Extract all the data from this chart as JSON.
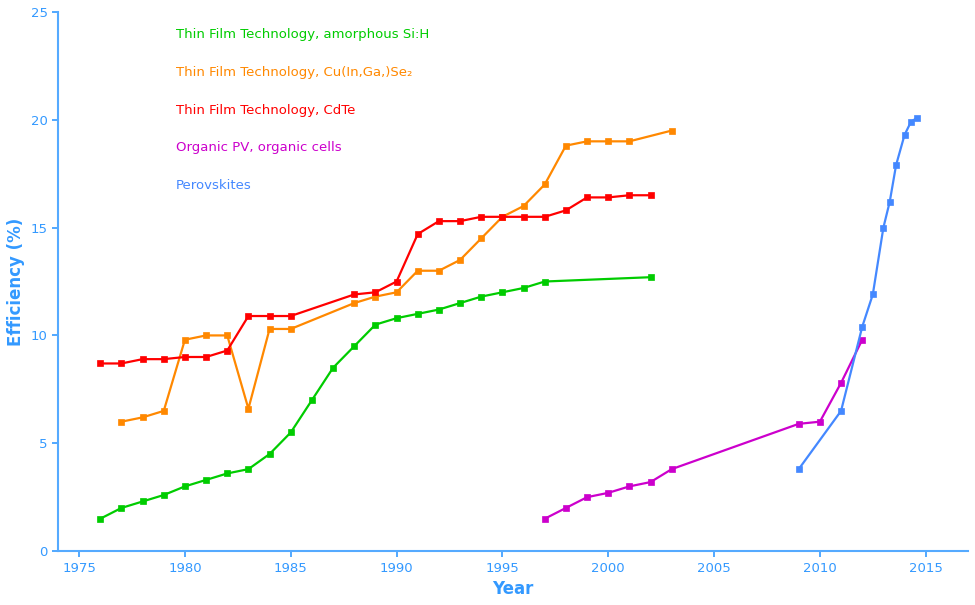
{
  "series": [
    {
      "label": "Thin Film Technology, amorphous Si:H",
      "color": "#00cc00",
      "x": [
        1976,
        1977,
        1978,
        1979,
        1980,
        1981,
        1982,
        1983,
        1984,
        1985,
        1986,
        1987,
        1988,
        1989,
        1990,
        1991,
        1992,
        1993,
        1994,
        1995,
        1996,
        1997,
        2002
      ],
      "y": [
        1.5,
        2.0,
        2.3,
        2.6,
        3.0,
        3.3,
        3.6,
        3.8,
        4.5,
        5.5,
        7.0,
        8.5,
        9.5,
        10.5,
        10.8,
        11.0,
        11.2,
        11.5,
        11.8,
        12.0,
        12.2,
        12.5,
        12.7
      ]
    },
    {
      "label": "Thin Film Technology, Cu(In,Ga,)Se₂",
      "color": "#ff8800",
      "x": [
        1977,
        1978,
        1979,
        1980,
        1981,
        1982,
        1983,
        1984,
        1985,
        1988,
        1989,
        1990,
        1991,
        1992,
        1993,
        1994,
        1995,
        1996,
        1997,
        1998,
        1999,
        2000,
        2001,
        2003
      ],
      "y": [
        6.0,
        6.2,
        6.5,
        9.8,
        10.0,
        10.0,
        6.6,
        10.3,
        10.3,
        11.5,
        11.8,
        12.0,
        13.0,
        13.0,
        13.5,
        14.5,
        15.5,
        16.0,
        17.0,
        18.8,
        19.0,
        19.0,
        19.0,
        19.5
      ]
    },
    {
      "label": "Thin Film Technology, CdTe",
      "color": "#ff0000",
      "x": [
        1976,
        1977,
        1978,
        1979,
        1980,
        1981,
        1982,
        1983,
        1984,
        1985,
        1988,
        1989,
        1990,
        1991,
        1992,
        1993,
        1994,
        1995,
        1996,
        1997,
        1998,
        1999,
        2000,
        2001,
        2002
      ],
      "y": [
        8.7,
        8.7,
        8.9,
        8.9,
        9.0,
        9.0,
        9.3,
        10.9,
        10.9,
        10.9,
        11.9,
        12.0,
        12.5,
        14.7,
        15.3,
        15.3,
        15.5,
        15.5,
        15.5,
        15.5,
        15.8,
        16.4,
        16.4,
        16.5,
        16.5
      ]
    },
    {
      "label": "Organic PV, organic cells",
      "color": "#cc00cc",
      "x": [
        1997,
        1998,
        1999,
        2000,
        2001,
        2002,
        2003,
        2009,
        2010,
        2011,
        2012
      ],
      "y": [
        1.5,
        2.0,
        2.5,
        2.7,
        3.0,
        3.2,
        3.8,
        5.9,
        6.0,
        7.8,
        9.8
      ]
    },
    {
      "label": "Perovskites",
      "color": "#4488ff",
      "x": [
        2009,
        2011,
        2012,
        2012.5,
        2013,
        2013.3,
        2013.6,
        2014,
        2014.3,
        2014.6
      ],
      "y": [
        3.8,
        6.5,
        10.4,
        11.9,
        15.0,
        16.2,
        17.9,
        19.3,
        19.9,
        20.1
      ]
    }
  ],
  "xlim": [
    1974,
    2017
  ],
  "ylim": [
    0,
    25
  ],
  "xlabel": "Year",
  "ylabel": "Efficiency (%)",
  "xticks": [
    1975,
    1980,
    1985,
    1990,
    1995,
    2000,
    2005,
    2010,
    2015
  ],
  "yticks": [
    0,
    5,
    10,
    15,
    20,
    25
  ],
  "axis_color": "#55aaff",
  "label_color": "#3399ff",
  "tick_color": "#3399ff",
  "background_color": "#ffffff",
  "marker": "s",
  "markersize": 5,
  "linewidth": 1.6
}
